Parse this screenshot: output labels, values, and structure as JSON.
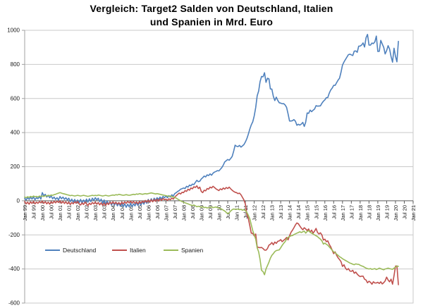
{
  "title_line1": "Vergleich: Target2 Salden von Deutschland, Italien",
  "title_line2": "und Spanien in Mrd. Euro",
  "chart_data": {
    "type": "line",
    "title": "Vergleich: Target2 Salden von Deutschland, Italien und Spanien in Mrd. Euro",
    "xlabel": "",
    "ylabel": "Mrd. Euro",
    "x_start": "Jan 1999",
    "x_frequency": "monthly",
    "x_total_categories": 265,
    "x_tick_every": 6,
    "x_tick_labels": [
      "Jan 99",
      "Jul 99",
      "Jan 00",
      "Jul 00",
      "Jan 01",
      "Jul 01",
      "Jan 02",
      "Jul 02",
      "Jan 03",
      "Jul 03",
      "Jan 04",
      "Jul 04",
      "Jan 05",
      "Jul 05",
      "Jan 06",
      "Jul 06",
      "Jan 07",
      "Jul 07",
      "Jan 08",
      "Jul 08",
      "Jan 09",
      "Jul 09",
      "Jan 10",
      "Jul 10",
      "Jan 11",
      "Jul 11",
      "Jan 12",
      "Jul 12",
      "Jan 13",
      "Jul 13",
      "Jan 14",
      "Jul 14",
      "Jan 15",
      "Jul 15",
      "Jan 16",
      "Jul 16",
      "Jan 17",
      "Jul 17",
      "Jan 18",
      "Jul 18",
      "Jan 19",
      "Jul 19",
      "Jan 20",
      "Jul 20",
      "Jan 21"
    ],
    "y_axis": {
      "min": -600,
      "max": 1000,
      "step": 200,
      "ticks": [
        1000,
        800,
        600,
        400,
        200,
        0,
        -200,
        -400,
        -600
      ],
      "tick_labels": [
        "1000",
        "800",
        "600",
        "400",
        "200",
        "0",
        "-200",
        "-400",
        "-600"
      ]
    },
    "grid": "horizontal",
    "legend_position": "inside-bottom-left",
    "colors": {
      "grid": "#c9c9c9",
      "zero_axis": "#595959",
      "axis_line": "#a0a0a0",
      "text": "#1a1a1a"
    },
    "series": [
      {
        "name": "Deutschland",
        "color": "#4F81BD",
        "values": [
          15,
          5,
          18,
          8,
          20,
          10,
          22,
          6,
          18,
          12,
          25,
          10,
          48,
          30,
          38,
          22,
          32,
          18,
          28,
          12,
          22,
          8,
          18,
          5,
          25,
          12,
          22,
          8,
          18,
          5,
          15,
          -5,
          10,
          -8,
          8,
          -15,
          5,
          -12,
          8,
          -15,
          5,
          -10,
          10,
          -8,
          12,
          -5,
          15,
          2,
          18,
          5,
          15,
          -5,
          10,
          -15,
          5,
          -20,
          0,
          -22,
          -5,
          -25,
          -8,
          -25,
          -10,
          -30,
          -12,
          -32,
          -15,
          -35,
          -18,
          -38,
          -20,
          -35,
          -15,
          -35,
          -18,
          -30,
          -10,
          -28,
          -8,
          -25,
          -5,
          -20,
          0,
          -15,
          8,
          -10,
          12,
          -5,
          15,
          2,
          18,
          8,
          22,
          12,
          25,
          18,
          28,
          18,
          30,
          22,
          35,
          28,
          42,
          48,
          55,
          60,
          68,
          71,
          75,
          72,
          85,
          80,
          92,
          88,
          98,
          95,
          108,
          120,
          112,
          115,
          128,
          135,
          145,
          140,
          152,
          148,
          158,
          150,
          162,
          168,
          172,
          177,
          175,
          185,
          195,
          210,
          228,
          235,
          242,
          238,
          248,
          260,
          290,
          326,
          320,
          318,
          325,
          315,
          322,
          330,
          345,
          365,
          390,
          420,
          445,
          463,
          498,
          547,
          616,
          644,
          699,
          729,
          727,
          751,
          695,
          719,
          715,
          656,
          655,
          613,
          588,
          608,
          589,
          575,
          573,
          569,
          570,
          562,
          548,
          510,
          468,
          468,
          470,
          476,
          467,
          443,
          449,
          444,
          450,
          460,
          436,
          461,
          515,
          513,
          532,
          523,
          531,
          538,
          558,
          555,
          556,
          557,
          572,
          584,
          592,
          605,
          605,
          631,
          650,
          661,
          677,
          677,
          693,
          708,
          719,
          754,
          796,
          814,
          829,
          843,
          857,
          860,
          856,
          852,
          878,
          879,
          871,
          907,
          908,
          914,
          926,
          902,
          956,
          976,
          913,
          913,
          925,
          922,
          932,
          966,
          876,
          877,
          941,
          920,
          900,
          861,
          881,
          910,
          890,
          846,
          813,
          895,
          847,
          815,
          935
        ]
      },
      {
        "name": "Italien",
        "color": "#C0504D",
        "values": [
          -5,
          -18,
          -8,
          -20,
          -6,
          -16,
          -4,
          -18,
          -8,
          -15,
          -5,
          -12,
          -2,
          -15,
          -5,
          -18,
          -8,
          -20,
          -5,
          -15,
          -3,
          -12,
          -2,
          -10,
          0,
          -14,
          -4,
          -16,
          -6,
          -18,
          -8,
          -22,
          -10,
          -18,
          -6,
          -14,
          -4,
          -18,
          -25,
          -12,
          -22,
          -8,
          -18,
          -28,
          -14,
          -22,
          -10,
          -18,
          -8,
          -20,
          -10,
          -24,
          -12,
          -26,
          -14,
          -28,
          -12,
          -22,
          -8,
          -18,
          -6,
          -18,
          -8,
          -20,
          -10,
          -22,
          -8,
          -18,
          -6,
          -15,
          -4,
          -12,
          -2,
          -14,
          -4,
          -16,
          -6,
          -18,
          -4,
          -14,
          -2,
          -10,
          2,
          -8,
          4,
          -8,
          6,
          -6,
          8,
          -4,
          10,
          -2,
          12,
          2,
          14,
          6,
          10,
          2,
          12,
          6,
          16,
          10,
          22,
          30,
          38,
          45,
          40,
          50,
          48,
          60,
          55,
          68,
          62,
          75,
          70,
          82,
          78,
          88,
          72,
          80,
          55,
          48,
          62,
          58,
          72,
          68,
          80,
          75,
          85,
          78,
          70,
          65,
          60,
          70,
          65,
          75,
          68,
          78,
          72,
          80,
          70,
          62,
          55,
          50,
          48,
          42,
          45,
          35,
          20,
          5,
          -20,
          -80,
          -103,
          -145,
          -190,
          -191,
          -206,
          -195,
          -270,
          -274,
          -275,
          -274,
          -280,
          -289,
          -290,
          -280,
          -260,
          -255,
          -245,
          -258,
          -242,
          -250,
          -238,
          -235,
          -228,
          -240,
          -232,
          -225,
          -215,
          -229,
          -205,
          -185,
          -172,
          -158,
          -142,
          -130,
          -135,
          -148,
          -160,
          -170,
          -158,
          -165,
          -175,
          -165,
          -185,
          -172,
          -190,
          -178,
          -162,
          -185,
          -195,
          -188,
          -200,
          -230,
          -225,
          -240,
          -235,
          -255,
          -270,
          -290,
          -310,
          -300,
          -320,
          -335,
          -345,
          -357,
          -385,
          -375,
          -395,
          -405,
          -398,
          -412,
          -414,
          -408,
          -425,
          -418,
          -430,
          -439,
          -445,
          -442,
          -442,
          -460,
          -465,
          -481,
          -472,
          -478,
          -489,
          -475,
          -482,
          -482,
          -478,
          -485,
          -475,
          -488,
          -480,
          -470,
          -448,
          -465,
          -475,
          -460,
          -489,
          -439,
          -383,
          -382,
          -492
        ]
      },
      {
        "name": "Spanien",
        "color": "#9BBB59",
        "values": [
          22,
          18,
          24,
          20,
          26,
          22,
          28,
          24,
          26,
          22,
          28,
          25,
          28,
          25,
          30,
          28,
          32,
          30,
          34,
          32,
          36,
          38,
          42,
          45,
          48,
          45,
          42,
          40,
          38,
          35,
          33,
          30,
          32,
          30,
          28,
          30,
          32,
          30,
          28,
          30,
          32,
          30,
          28,
          26,
          28,
          30,
          32,
          30,
          32,
          30,
          34,
          32,
          30,
          28,
          30,
          32,
          30,
          28,
          30,
          32,
          34,
          32,
          36,
          34,
          38,
          36,
          34,
          32,
          34,
          36,
          34,
          32,
          34,
          36,
          38,
          36,
          40,
          38,
          42,
          40,
          38,
          40,
          42,
          40,
          42,
          44,
          46,
          44,
          42,
          40,
          42,
          40,
          38,
          36,
          34,
          32,
          30,
          28,
          26,
          28,
          25,
          22,
          20,
          15,
          10,
          5,
          0,
          -5,
          -8,
          -12,
          -15,
          -18,
          -22,
          -25,
          -28,
          -25,
          -30,
          -35,
          -32,
          -35,
          -38,
          -35,
          -40,
          -38,
          -42,
          -40,
          -38,
          -36,
          -40,
          -38,
          -36,
          -40,
          -42,
          -45,
          -50,
          -55,
          -60,
          -68,
          -76,
          -70,
          -60,
          -52,
          -48,
          -50,
          -50,
          -48,
          -52,
          -50,
          -55,
          -52,
          -58,
          -68,
          -85,
          -105,
          -140,
          -175,
          -200,
          -225,
          -276,
          -300,
          -345,
          -408,
          -415,
          -434,
          -400,
          -380,
          -360,
          -337,
          -320,
          -310,
          -298,
          -292,
          -290,
          -288,
          -275,
          -262,
          -250,
          -240,
          -225,
          -214,
          -210,
          -205,
          -204,
          -198,
          -194,
          -190,
          -186,
          -182,
          -186,
          -182,
          -178,
          -190,
          -180,
          -175,
          -185,
          -190,
          -195,
          -200,
          -205,
          -210,
          -218,
          -225,
          -235,
          -254,
          -248,
          -255,
          -260,
          -270,
          -280,
          -290,
          -300,
          -305,
          -313,
          -320,
          -328,
          -333,
          -340,
          -345,
          -350,
          -355,
          -360,
          -365,
          -368,
          -372,
          -375,
          -370,
          -372,
          -373,
          -378,
          -382,
          -385,
          -390,
          -395,
          -398,
          -400,
          -398,
          -402,
          -400,
          -398,
          -403,
          -400,
          -395,
          -398,
          -402,
          -405,
          -400,
          -398,
          -395,
          -398,
          -400,
          -402,
          -395,
          -390,
          -382,
          -385
        ]
      }
    ]
  },
  "legend": {
    "items": [
      {
        "label": "Deutschland"
      },
      {
        "label": "Italien"
      },
      {
        "label": "Spanien"
      }
    ]
  }
}
